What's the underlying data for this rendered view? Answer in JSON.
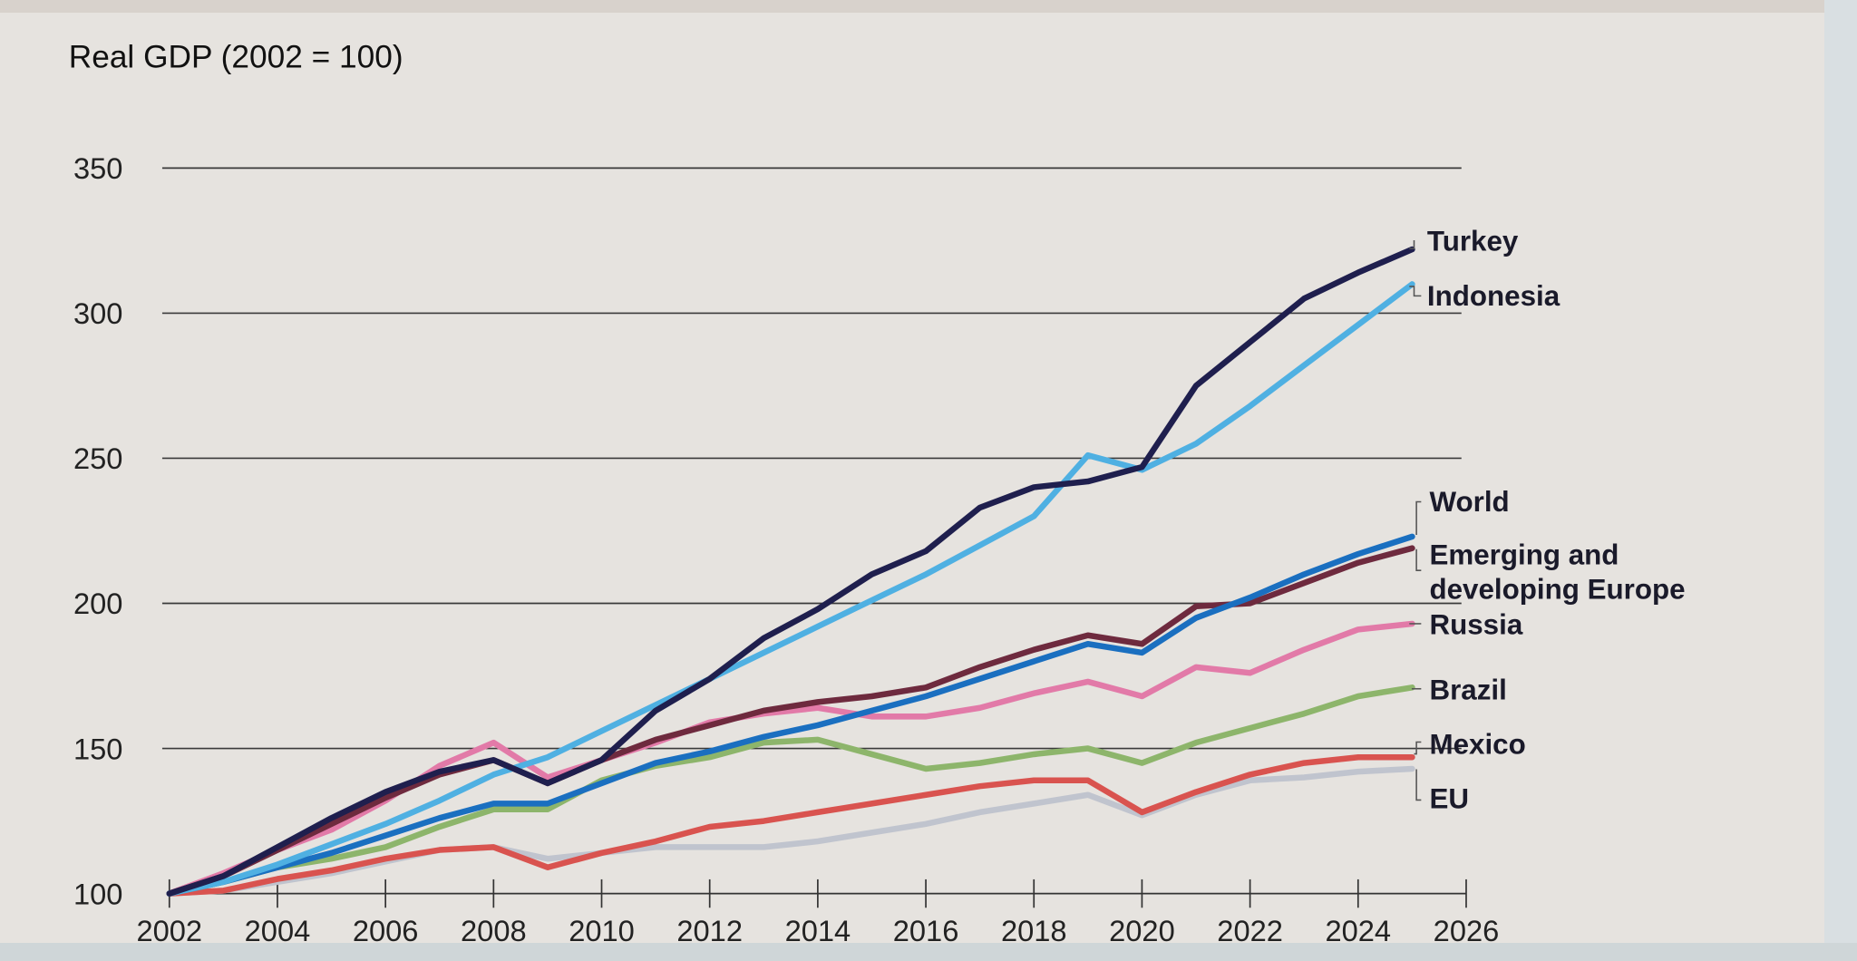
{
  "chart_data": {
    "type": "line",
    "title": "Real GDP (2002 = 100)",
    "xlabel": "",
    "ylabel": "",
    "xlim": [
      2002,
      2026
    ],
    "ylim": [
      100,
      350
    ],
    "xticks": [
      "2002",
      "2004",
      "2006",
      "2008",
      "2010",
      "2012",
      "2014",
      "2016",
      "2018",
      "2020",
      "2022",
      "2024",
      "2026"
    ],
    "yticks": [
      "100",
      "150",
      "200",
      "250",
      "300",
      "350"
    ],
    "grid": true,
    "legend": "direct labels at right end of lines",
    "x": [
      2002,
      2003,
      2004,
      2005,
      2006,
      2007,
      2008,
      2009,
      2010,
      2011,
      2012,
      2013,
      2014,
      2015,
      2016,
      2017,
      2018,
      2019,
      2020,
      2021,
      2022,
      2023,
      2024,
      2025
    ],
    "series": [
      {
        "name": "Turkey",
        "color": "#1f1f4e",
        "values": [
          100,
          106,
          116,
          126,
          135,
          142,
          146,
          138,
          146,
          163,
          174,
          188,
          198,
          210,
          218,
          233,
          240,
          242,
          247,
          275,
          290,
          305,
          314,
          322
        ]
      },
      {
        "name": "Indonesia",
        "color": "#4fb0e2",
        "values": [
          100,
          104,
          110,
          117,
          124,
          132,
          141,
          147,
          156,
          165,
          174,
          183,
          192,
          201,
          210,
          220,
          230,
          251,
          246,
          255,
          268,
          282,
          296,
          310
        ]
      },
      {
        "name": "World",
        "color": "#1a6fc0",
        "values": [
          100,
          104,
          109,
          114,
          120,
          126,
          131,
          131,
          138,
          145,
          149,
          154,
          158,
          163,
          168,
          174,
          180,
          186,
          183,
          195,
          202,
          210,
          217,
          223
        ]
      },
      {
        "name": "Emerging and developing Europe",
        "color": "#6e2a3e",
        "values": [
          100,
          106,
          115,
          124,
          133,
          141,
          146,
          138,
          146,
          153,
          158,
          163,
          166,
          168,
          171,
          178,
          184,
          189,
          186,
          199,
          200,
          207,
          214,
          219
        ]
      },
      {
        "name": "Russia",
        "color": "#e27aa8",
        "values": [
          100,
          107,
          115,
          122,
          132,
          144,
          152,
          140,
          146,
          152,
          159,
          162,
          164,
          161,
          161,
          164,
          169,
          173,
          168,
          178,
          176,
          184,
          191,
          193
        ]
      },
      {
        "name": "Brazil",
        "color": "#8db56b",
        "values": [
          100,
          104,
          109,
          112,
          116,
          123,
          129,
          129,
          139,
          144,
          147,
          152,
          153,
          148,
          143,
          145,
          148,
          150,
          145,
          152,
          157,
          162,
          168,
          171
        ]
      },
      {
        "name": "Mexico",
        "color": "#d9534f",
        "values": [
          100,
          101,
          105,
          108,
          112,
          115,
          116,
          109,
          114,
          118,
          123,
          125,
          128,
          131,
          134,
          137,
          139,
          139,
          128,
          135,
          141,
          145,
          147,
          147
        ]
      },
      {
        "name": "EU",
        "color": "#c0c4ce",
        "values": [
          100,
          101,
          104,
          107,
          111,
          115,
          116,
          112,
          114,
          116,
          116,
          116,
          118,
          121,
          124,
          128,
          131,
          134,
          127,
          134,
          139,
          140,
          142,
          143
        ]
      }
    ],
    "labels": {
      "turkey": "Turkey",
      "indonesia": "Indonesia",
      "world": "World",
      "ede_line1": "Emerging and",
      "ede_line2": "developing Europe",
      "russia": "Russia",
      "brazil": "Brazil",
      "mexico": "Mexico",
      "eu": "EU"
    }
  }
}
